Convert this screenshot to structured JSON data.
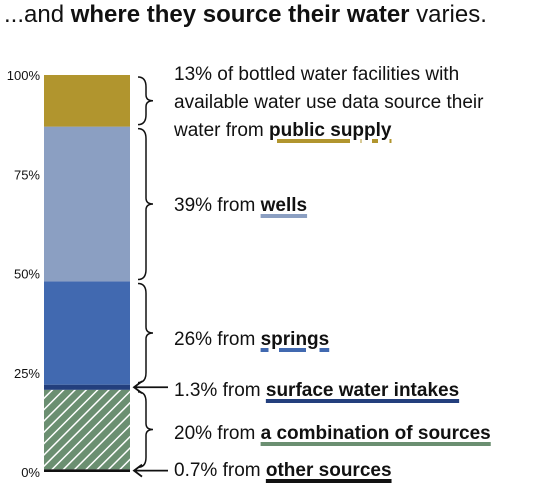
{
  "title": {
    "prefix": "...and ",
    "bold": "where they source their water",
    "suffix": " varies."
  },
  "annotations": {
    "public_supply": {
      "line1": "13% of bottled water facilities with",
      "line2": "available water use data source their",
      "line3_prefix": "water from ",
      "line3_bold": "public supply"
    },
    "wells": {
      "prefix": "39% from ",
      "bold": "wells"
    },
    "springs": {
      "prefix": "26% from ",
      "bold": "springs"
    },
    "surface": {
      "prefix": "1.3% from ",
      "bold": "surface water intakes"
    },
    "combination": {
      "prefix": "20% from ",
      "bold": "a combination of sources"
    },
    "other": {
      "prefix": "0.7% from ",
      "bold": "other sources"
    }
  },
  "chart_data": {
    "type": "bar",
    "stacked": true,
    "ylim": [
      0,
      100
    ],
    "yticks": [
      "0%",
      "25%",
      "50%",
      "75%",
      "100%"
    ],
    "segments": [
      {
        "name": "other sources",
        "value": 0.7,
        "color": "#111111",
        "pattern": "solid"
      },
      {
        "name": "a combination of sources",
        "value": 20,
        "color": "#6b8f71",
        "pattern": "hatch"
      },
      {
        "name": "surface water intakes",
        "value": 1.3,
        "color": "#233f7d",
        "pattern": "solid"
      },
      {
        "name": "springs",
        "value": 26,
        "color": "#4169b0",
        "pattern": "solid"
      },
      {
        "name": "wells",
        "value": 39,
        "color": "#8b9fc2",
        "pattern": "solid"
      },
      {
        "name": "public supply",
        "value": 13,
        "color": "#b1952e",
        "pattern": "solid"
      }
    ]
  }
}
